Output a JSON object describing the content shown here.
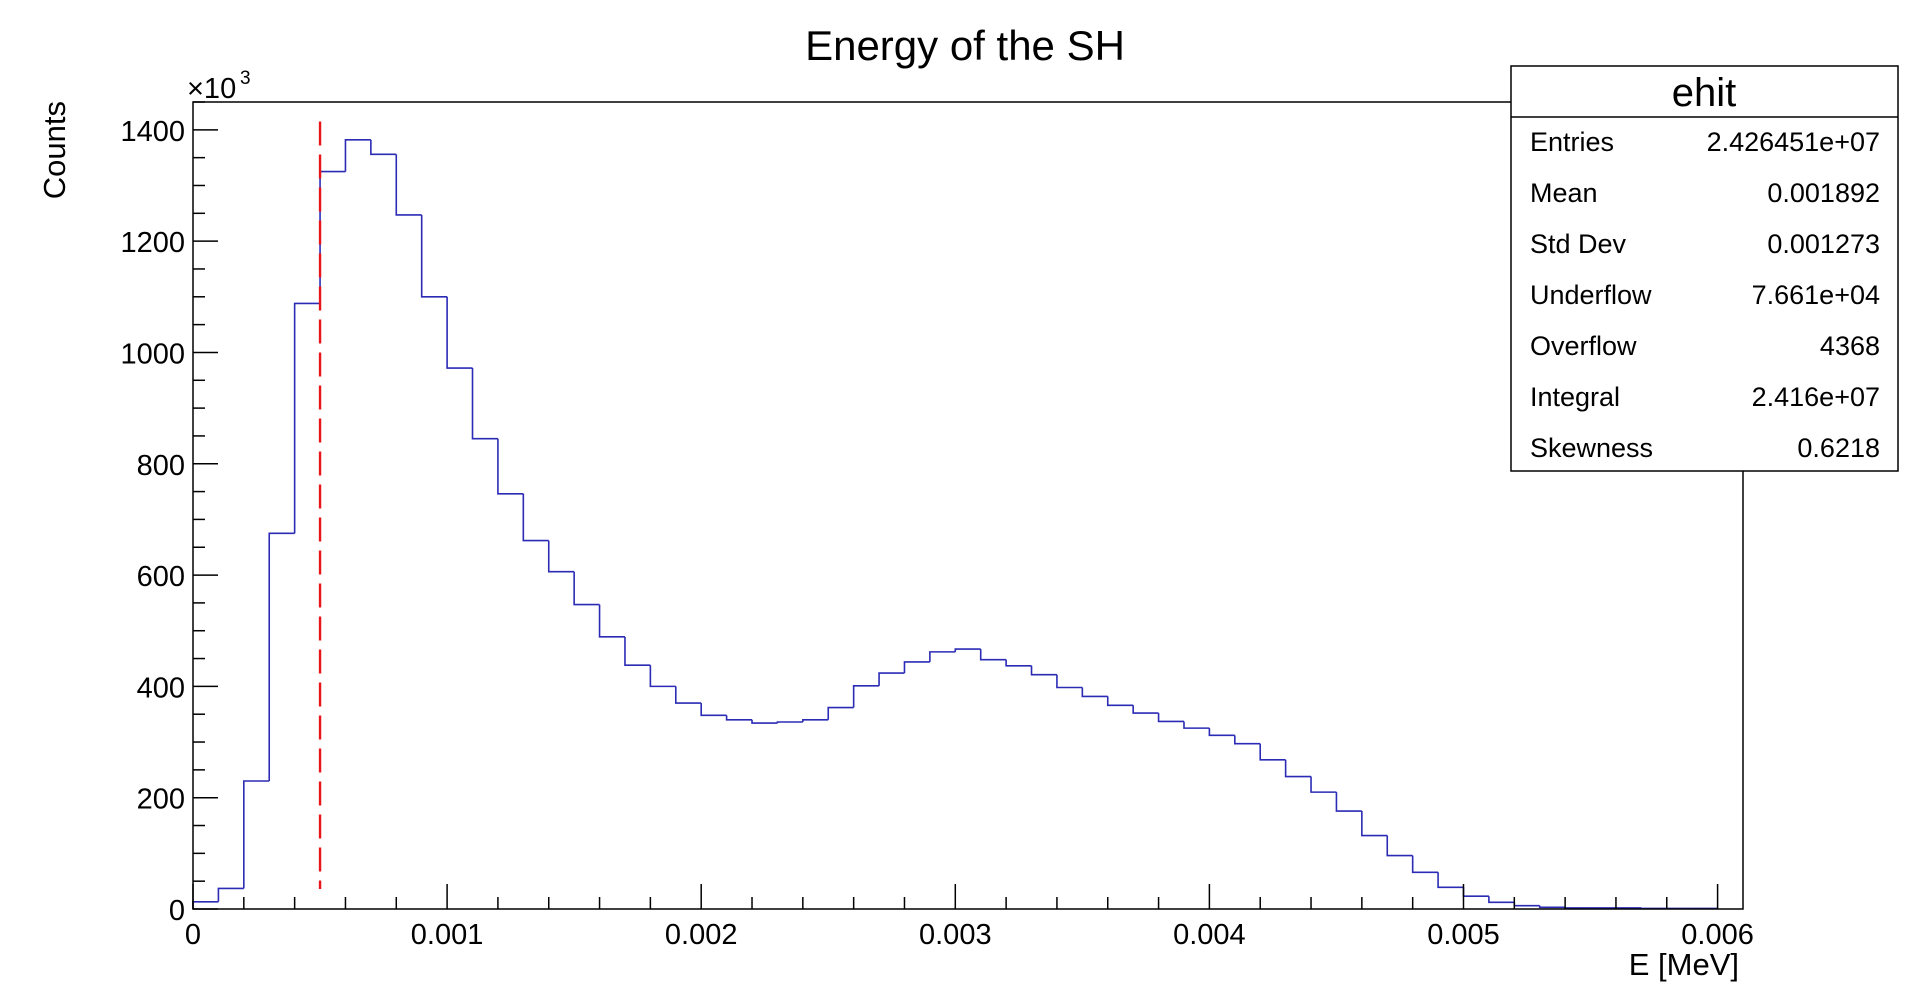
{
  "chart_data": {
    "type": "histogram",
    "title": "Energy of the SH",
    "xlabel": "E [MeV]",
    "ylabel": "Counts",
    "y_multiplier_base": "×10",
    "y_multiplier_exp": "3",
    "xlim": [
      0,
      0.0061
    ],
    "ylim": [
      0,
      1450
    ],
    "x_ticks": [
      0,
      0.001,
      0.002,
      0.003,
      0.004,
      0.005,
      0.006
    ],
    "x_tick_labels": [
      "0",
      "0.001",
      "0.002",
      "0.003",
      "0.004",
      "0.005",
      "0.006"
    ],
    "y_ticks": [
      0,
      200,
      400,
      600,
      800,
      1000,
      1200,
      1400
    ],
    "y_tick_labels": [
      "0",
      "200",
      "400",
      "600",
      "800",
      "1000",
      "1200",
      "1400"
    ],
    "bin_width": 0.0001,
    "bin_start": 0,
    "values": [
      13,
      37,
      230,
      675,
      1088,
      1325,
      1382,
      1356,
      1247,
      1100,
      972,
      845,
      746,
      662,
      606,
      547,
      489,
      438,
      400,
      370,
      348,
      340,
      334,
      336,
      340,
      362,
      401,
      424,
      444,
      462,
      467,
      448,
      437,
      421,
      398,
      382,
      366,
      352,
      337,
      325,
      312,
      297,
      268,
      238,
      210,
      176,
      132,
      96,
      66,
      39,
      23,
      12,
      6,
      3,
      2,
      2,
      2,
      1,
      1,
      1
    ],
    "line_color": "#2b2bb5",
    "cut_line": {
      "x": 0.0005,
      "color": "#e8161a",
      "y_top": 1415
    },
    "grid": false,
    "stats_box": {
      "title": "ehit",
      "position": "top-right",
      "rows": [
        {
          "label": "Entries",
          "value": "2.426451e+07"
        },
        {
          "label": "Mean",
          "value": "0.001892"
        },
        {
          "label": "Std Dev",
          "value": "0.001273"
        },
        {
          "label": "Underflow",
          "value": "7.661e+04"
        },
        {
          "label": "Overflow",
          "value": "4368"
        },
        {
          "label": "Integral",
          "value": "2.416e+07"
        },
        {
          "label": "Skewness",
          "value": "0.6218"
        }
      ]
    }
  }
}
